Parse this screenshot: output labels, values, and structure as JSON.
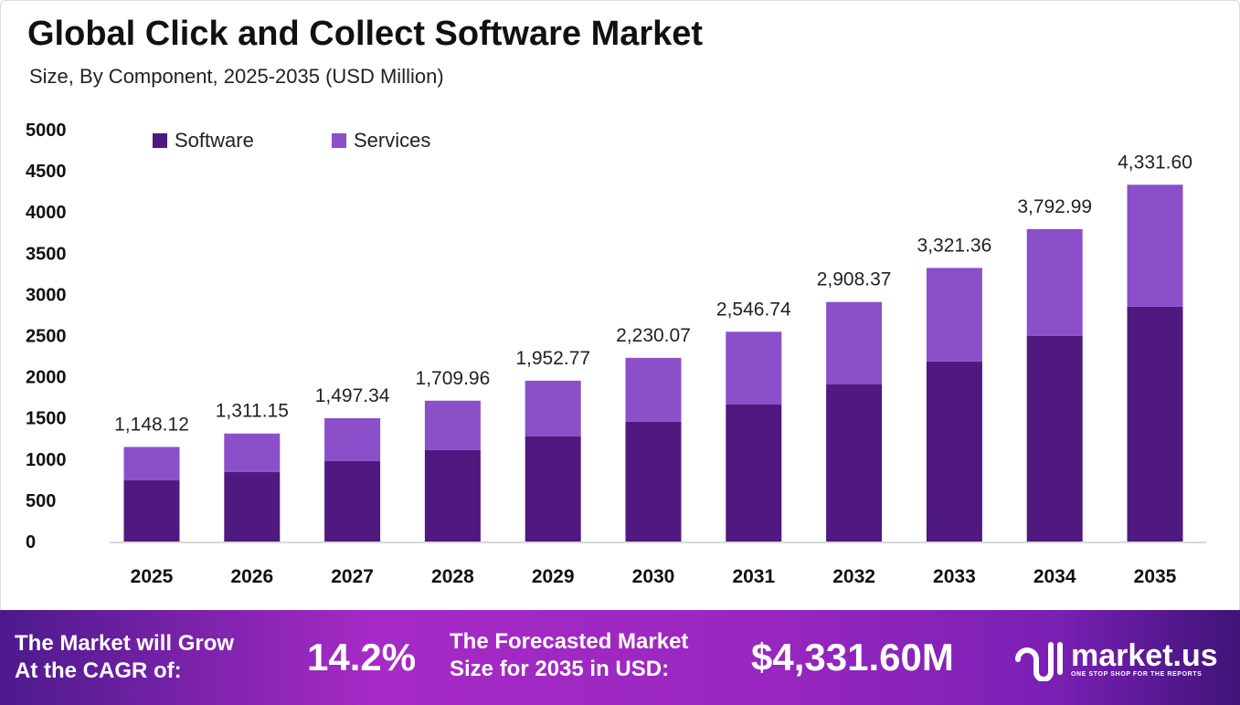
{
  "title": "Global Click and Collect Software Market",
  "subtitle": "Size, By Component, 2025-2035 (USD Million)",
  "colors": {
    "software": "#4f1980",
    "services": "#8b4fc9"
  },
  "chart_data": {
    "type": "bar",
    "stacked": true,
    "categories": [
      "2025",
      "2026",
      "2027",
      "2028",
      "2029",
      "2030",
      "2031",
      "2032",
      "2033",
      "2034",
      "2035"
    ],
    "series": [
      {
        "name": "Software",
        "values": [
          743,
          843,
          976,
          1109,
          1275,
          1453,
          1663,
          1907,
          2185,
          2495,
          2850
        ]
      },
      {
        "name": "Services",
        "values": [
          405.12,
          468.15,
          521.34,
          600.96,
          677.77,
          777.07,
          883.74,
          1001.37,
          1136.36,
          1297.99,
          1481.6
        ]
      }
    ],
    "totals_labels": [
      "1,148.12",
      "1,311.15",
      "1,497.34",
      "1,709.96",
      "1,952.77",
      "2,230.07",
      "2,546.74",
      "2,908.37",
      "3,321.36",
      "3,792.99",
      "4,331.60"
    ],
    "totals": [
      1148.12,
      1311.15,
      1497.34,
      1709.96,
      1952.77,
      2230.07,
      2546.74,
      2908.37,
      3321.36,
      3792.99,
      4331.6
    ],
    "ylim": [
      0,
      5000
    ],
    "yticks": [
      "0",
      "500",
      "1000",
      "1500",
      "2000",
      "2500",
      "3000",
      "3500",
      "4000",
      "4500",
      "5000"
    ],
    "legend_position": "top-left",
    "grid": false
  },
  "footer": {
    "cagr_label_1": "The Market will Grow",
    "cagr_label_2": "At the CAGR of:",
    "cagr_value": "14.2%",
    "forecast_label_1": "The Forecasted Market",
    "forecast_label_2": "Size for 2035 in USD:",
    "forecast_value": "$4,331.60M",
    "brand": "market.us",
    "tagline": "ONE STOP SHOP FOR THE REPORTS"
  }
}
